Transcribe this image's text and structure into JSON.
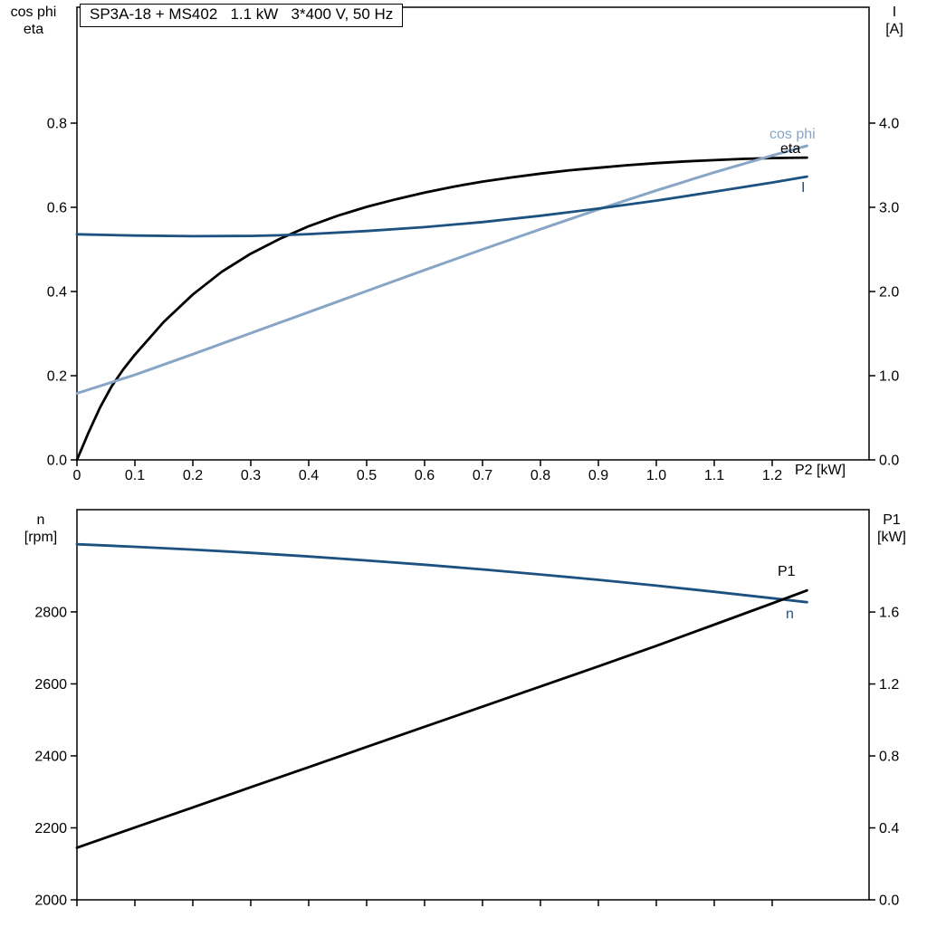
{
  "title": "SP3A-18 + MS402   1.1 kW   3*400 V, 50 Hz",
  "colors": {
    "black": "#000000",
    "dark_blue": "#1c5180",
    "light_blue": "#87a6c5"
  },
  "axis_corner_labels": {
    "top_left": [
      "cos phi",
      "eta"
    ],
    "top_right": [
      "I",
      "[A]"
    ],
    "bottom_left": [
      "n",
      "[rpm]"
    ],
    "bottom_right": [
      "P1",
      "[kW]"
    ]
  },
  "x_axis_label": "P2 [kW]",
  "curve_labels": [
    {
      "text": "cos phi",
      "color": "light_blue"
    },
    {
      "text": "eta",
      "color": "black"
    },
    {
      "text": "I",
      "color": "dark_blue"
    },
    {
      "text": "P1",
      "color": "black"
    },
    {
      "text": "n",
      "color": "dark_blue"
    }
  ],
  "chart_data": [
    {
      "type": "line",
      "name": "electrical-panel",
      "title": "SP3A-18 + MS402   1.1 kW   3*400 V, 50 Hz",
      "grid": false,
      "x_axis": {
        "label": "P2 [kW]",
        "range": [
          0,
          1.3672
        ],
        "ticks": [
          0,
          0.1,
          0.2,
          0.3,
          0.4,
          0.5,
          0.6,
          0.7,
          0.8,
          0.9,
          1.0,
          1.1,
          1.2
        ],
        "tick_labels": [
          "0",
          "0.1",
          "0.2",
          "0.3",
          "0.4",
          "0.5",
          "0.6",
          "0.7",
          "0.8",
          "0.9",
          "1.0",
          "1.1",
          "1.2"
        ],
        "show_tick_labels": true
      },
      "left_axis": {
        "label": "cos phi / eta",
        "range": [
          0,
          1.0753
        ],
        "ticks": [
          0,
          0.2,
          0.4,
          0.6,
          0.8
        ],
        "tick_labels": [
          "0.0",
          "0.2",
          "0.4",
          "0.6",
          "0.8"
        ]
      },
      "right_axis": {
        "label": "I [A]",
        "range": [
          0,
          5.3763
        ],
        "ticks": [
          0,
          1,
          2,
          3,
          4
        ],
        "tick_labels": [
          "0.0",
          "1.0",
          "2.0",
          "3.0",
          "4.0"
        ]
      },
      "series": [
        {
          "name": "eta",
          "axis": "left",
          "color": "black",
          "width": 2.8,
          "points": [
            [
              0,
              0
            ],
            [
              0.02,
              0.065
            ],
            [
              0.04,
              0.125
            ],
            [
              0.06,
              0.175
            ],
            [
              0.08,
              0.215
            ],
            [
              0.1,
              0.25
            ],
            [
              0.15,
              0.328
            ],
            [
              0.2,
              0.393
            ],
            [
              0.25,
              0.447
            ],
            [
              0.3,
              0.49
            ],
            [
              0.35,
              0.525
            ],
            [
              0.4,
              0.555
            ],
            [
              0.45,
              0.58
            ],
            [
              0.5,
              0.601
            ],
            [
              0.55,
              0.619
            ],
            [
              0.6,
              0.635
            ],
            [
              0.65,
              0.649
            ],
            [
              0.7,
              0.661
            ],
            [
              0.75,
              0.671
            ],
            [
              0.8,
              0.68
            ],
            [
              0.85,
              0.688
            ],
            [
              0.9,
              0.694
            ],
            [
              0.95,
              0.7
            ],
            [
              1.0,
              0.705
            ],
            [
              1.05,
              0.709
            ],
            [
              1.1,
              0.712
            ],
            [
              1.15,
              0.715
            ],
            [
              1.2,
              0.717
            ],
            [
              1.26,
              0.718
            ]
          ]
        },
        {
          "name": "cos-phi",
          "axis": "left",
          "color": "light_blue",
          "width": 3,
          "points": [
            [
              0,
              0.158
            ],
            [
              0.1,
              0.202
            ],
            [
              0.2,
              0.251
            ],
            [
              0.3,
              0.301
            ],
            [
              0.4,
              0.351
            ],
            [
              0.5,
              0.401
            ],
            [
              0.6,
              0.451
            ],
            [
              0.7,
              0.5
            ],
            [
              0.8,
              0.548
            ],
            [
              0.9,
              0.595
            ],
            [
              1.0,
              0.64
            ],
            [
              1.1,
              0.683
            ],
            [
              1.2,
              0.723
            ],
            [
              1.26,
              0.746
            ]
          ]
        },
        {
          "name": "current",
          "axis": "right",
          "color": "dark_blue",
          "width": 2.8,
          "points": [
            [
              0,
              2.68
            ],
            [
              0.1,
              2.665
            ],
            [
              0.2,
              2.657
            ],
            [
              0.3,
              2.66
            ],
            [
              0.35,
              2.668
            ],
            [
              0.4,
              2.682
            ],
            [
              0.5,
              2.718
            ],
            [
              0.6,
              2.765
            ],
            [
              0.7,
              2.825
            ],
            [
              0.8,
              2.9
            ],
            [
              0.9,
              2.985
            ],
            [
              1.0,
              3.08
            ],
            [
              1.1,
              3.185
            ],
            [
              1.2,
              3.295
            ],
            [
              1.26,
              3.365
            ]
          ]
        }
      ]
    },
    {
      "type": "line",
      "name": "mechanical-panel",
      "grid": false,
      "x_axis": {
        "label": "",
        "range": [
          0,
          1.3672
        ],
        "ticks": [
          0,
          0.1,
          0.2,
          0.3,
          0.4,
          0.5,
          0.6,
          0.7,
          0.8,
          0.9,
          1.0,
          1.1,
          1.2
        ],
        "tick_labels": [],
        "show_tick_labels": false
      },
      "left_axis": {
        "label": "n [rpm]",
        "range": [
          2000,
          3084
        ],
        "ticks": [
          2000,
          2200,
          2400,
          2600,
          2800
        ],
        "tick_labels": [
          "2000",
          "2200",
          "2400",
          "2600",
          "2800"
        ]
      },
      "right_axis": {
        "label": "P1 [kW]",
        "range": [
          0,
          2.169
        ],
        "ticks": [
          0,
          0.4,
          0.8,
          1.2,
          1.6
        ],
        "tick_labels": [
          "0.0",
          "0.4",
          "0.8",
          "1.2",
          "1.6"
        ]
      },
      "series": [
        {
          "name": "speed",
          "axis": "left",
          "color": "dark_blue",
          "width": 2.8,
          "points": [
            [
              0,
              2988
            ],
            [
              0.1,
              2981
            ],
            [
              0.2,
              2973
            ],
            [
              0.3,
              2964
            ],
            [
              0.4,
              2954
            ],
            [
              0.5,
              2943
            ],
            [
              0.6,
              2931
            ],
            [
              0.7,
              2918
            ],
            [
              0.8,
              2904
            ],
            [
              0.9,
              2889
            ],
            [
              1.0,
              2873
            ],
            [
              1.1,
              2856
            ],
            [
              1.2,
              2838
            ],
            [
              1.26,
              2827
            ]
          ]
        },
        {
          "name": "p1",
          "axis": "right",
          "color": "black",
          "width": 2.8,
          "points": [
            [
              0,
              0.29
            ],
            [
              0.1,
              0.402
            ],
            [
              0.2,
              0.514
            ],
            [
              0.3,
              0.626
            ],
            [
              0.4,
              0.738
            ],
            [
              0.5,
              0.85
            ],
            [
              0.6,
              0.962
            ],
            [
              0.7,
              1.074
            ],
            [
              0.8,
              1.186
            ],
            [
              0.9,
              1.298
            ],
            [
              1.0,
              1.412
            ],
            [
              1.1,
              1.53
            ],
            [
              1.2,
              1.648
            ],
            [
              1.26,
              1.72
            ]
          ]
        }
      ]
    }
  ]
}
